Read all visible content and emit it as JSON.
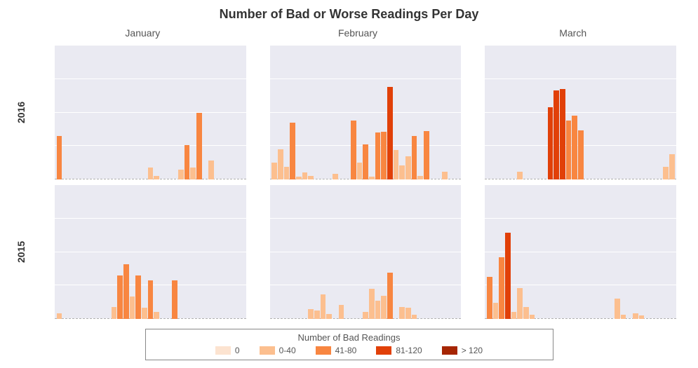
{
  "title": "Number of Bad or Worse Readings Per Day",
  "ylim": [
    0,
    160
  ],
  "yticks": [
    0,
    40,
    80,
    120,
    160
  ],
  "background_color": "#ffffff",
  "panel_bg": "#eaeaf2",
  "gridline_color": "#ffffff",
  "zero_line_color": "#b0b0b0",
  "months": [
    "January",
    "February",
    "March"
  ],
  "years": [
    "2016",
    "2015"
  ],
  "days_per_panel": 31,
  "colors": {
    "c0": "#fce3d0",
    "c1": "#fcbf8f",
    "c2": "#f88641",
    "c3": "#e14008",
    "c4": "#a62603"
  },
  "legend": {
    "title": "Number of Bad Readings",
    "items": [
      {
        "label": "0",
        "color": "c0"
      },
      {
        "label": "0-40",
        "color": "c1"
      },
      {
        "label": "41-80",
        "color": "c2"
      },
      {
        "label": "81-120",
        "color": "c3"
      },
      {
        "label": "> 120",
        "color": "c4"
      }
    ]
  },
  "panels": {
    "2016-January": [
      {
        "d": 1,
        "v": 52,
        "c": "c2"
      },
      {
        "d": 16,
        "v": 14,
        "c": "c1"
      },
      {
        "d": 17,
        "v": 4,
        "c": "c1"
      },
      {
        "d": 21,
        "v": 12,
        "c": "c1"
      },
      {
        "d": 22,
        "v": 41,
        "c": "c2"
      },
      {
        "d": 23,
        "v": 14,
        "c": "c1"
      },
      {
        "d": 24,
        "v": 80,
        "c": "c2"
      },
      {
        "d": 26,
        "v": 23,
        "c": "c1"
      }
    ],
    "2016-February": [
      {
        "d": 1,
        "v": 20,
        "c": "c1"
      },
      {
        "d": 2,
        "v": 36,
        "c": "c1"
      },
      {
        "d": 3,
        "v": 15,
        "c": "c1"
      },
      {
        "d": 4,
        "v": 68,
        "c": "c2"
      },
      {
        "d": 5,
        "v": 3,
        "c": "c1"
      },
      {
        "d": 6,
        "v": 8,
        "c": "c1"
      },
      {
        "d": 7,
        "v": 4,
        "c": "c1"
      },
      {
        "d": 11,
        "v": 7,
        "c": "c1"
      },
      {
        "d": 14,
        "v": 70,
        "c": "c2"
      },
      {
        "d": 15,
        "v": 20,
        "c": "c1"
      },
      {
        "d": 16,
        "v": 42,
        "c": "c2"
      },
      {
        "d": 17,
        "v": 3,
        "c": "c1"
      },
      {
        "d": 18,
        "v": 56,
        "c": "c2"
      },
      {
        "d": 19,
        "v": 57,
        "c": "c2"
      },
      {
        "d": 20,
        "v": 111,
        "c": "c3"
      },
      {
        "d": 21,
        "v": 35,
        "c": "c1"
      },
      {
        "d": 22,
        "v": 17,
        "c": "c1"
      },
      {
        "d": 23,
        "v": 28,
        "c": "c1"
      },
      {
        "d": 24,
        "v": 52,
        "c": "c2"
      },
      {
        "d": 25,
        "v": 4,
        "c": "c1"
      },
      {
        "d": 26,
        "v": 58,
        "c": "c2"
      },
      {
        "d": 29,
        "v": 9,
        "c": "c1"
      }
    ],
    "2016-March": [
      {
        "d": 6,
        "v": 9,
        "c": "c1"
      },
      {
        "d": 11,
        "v": 86,
        "c": "c3"
      },
      {
        "d": 12,
        "v": 106,
        "c": "c3"
      },
      {
        "d": 13,
        "v": 108,
        "c": "c3"
      },
      {
        "d": 14,
        "v": 70,
        "c": "c2"
      },
      {
        "d": 15,
        "v": 76,
        "c": "c2"
      },
      {
        "d": 16,
        "v": 59,
        "c": "c2"
      },
      {
        "d": 30,
        "v": 15,
        "c": "c1"
      },
      {
        "d": 31,
        "v": 30,
        "c": "c1"
      }
    ],
    "2015-January": [
      {
        "d": 1,
        "v": 7,
        "c": "c1"
      },
      {
        "d": 10,
        "v": 14,
        "c": "c1"
      },
      {
        "d": 11,
        "v": 52,
        "c": "c2"
      },
      {
        "d": 12,
        "v": 65,
        "c": "c2"
      },
      {
        "d": 13,
        "v": 27,
        "c": "c1"
      },
      {
        "d": 14,
        "v": 52,
        "c": "c2"
      },
      {
        "d": 15,
        "v": 13,
        "c": "c1"
      },
      {
        "d": 16,
        "v": 46,
        "c": "c2"
      },
      {
        "d": 17,
        "v": 8,
        "c": "c1"
      },
      {
        "d": 20,
        "v": 46,
        "c": "c2"
      }
    ],
    "2015-February": [
      {
        "d": 7,
        "v": 12,
        "c": "c1"
      },
      {
        "d": 8,
        "v": 10,
        "c": "c1"
      },
      {
        "d": 9,
        "v": 29,
        "c": "c1"
      },
      {
        "d": 10,
        "v": 6,
        "c": "c1"
      },
      {
        "d": 12,
        "v": 17,
        "c": "c1"
      },
      {
        "d": 16,
        "v": 8,
        "c": "c1"
      },
      {
        "d": 17,
        "v": 36,
        "c": "c1"
      },
      {
        "d": 18,
        "v": 22,
        "c": "c1"
      },
      {
        "d": 19,
        "v": 28,
        "c": "c1"
      },
      {
        "d": 20,
        "v": 55,
        "c": "c2"
      },
      {
        "d": 22,
        "v": 14,
        "c": "c1"
      },
      {
        "d": 23,
        "v": 13,
        "c": "c1"
      },
      {
        "d": 24,
        "v": 5,
        "c": "c1"
      }
    ],
    "2015-March": [
      {
        "d": 1,
        "v": 50,
        "c": "c2"
      },
      {
        "d": 2,
        "v": 19,
        "c": "c1"
      },
      {
        "d": 3,
        "v": 74,
        "c": "c2"
      },
      {
        "d": 4,
        "v": 103,
        "c": "c3"
      },
      {
        "d": 5,
        "v": 8,
        "c": "c1"
      },
      {
        "d": 6,
        "v": 37,
        "c": "c1"
      },
      {
        "d": 7,
        "v": 14,
        "c": "c1"
      },
      {
        "d": 8,
        "v": 5,
        "c": "c1"
      },
      {
        "d": 22,
        "v": 24,
        "c": "c1"
      },
      {
        "d": 23,
        "v": 5,
        "c": "c1"
      },
      {
        "d": 25,
        "v": 7,
        "c": "c1"
      },
      {
        "d": 26,
        "v": 4,
        "c": "c1"
      }
    ]
  }
}
